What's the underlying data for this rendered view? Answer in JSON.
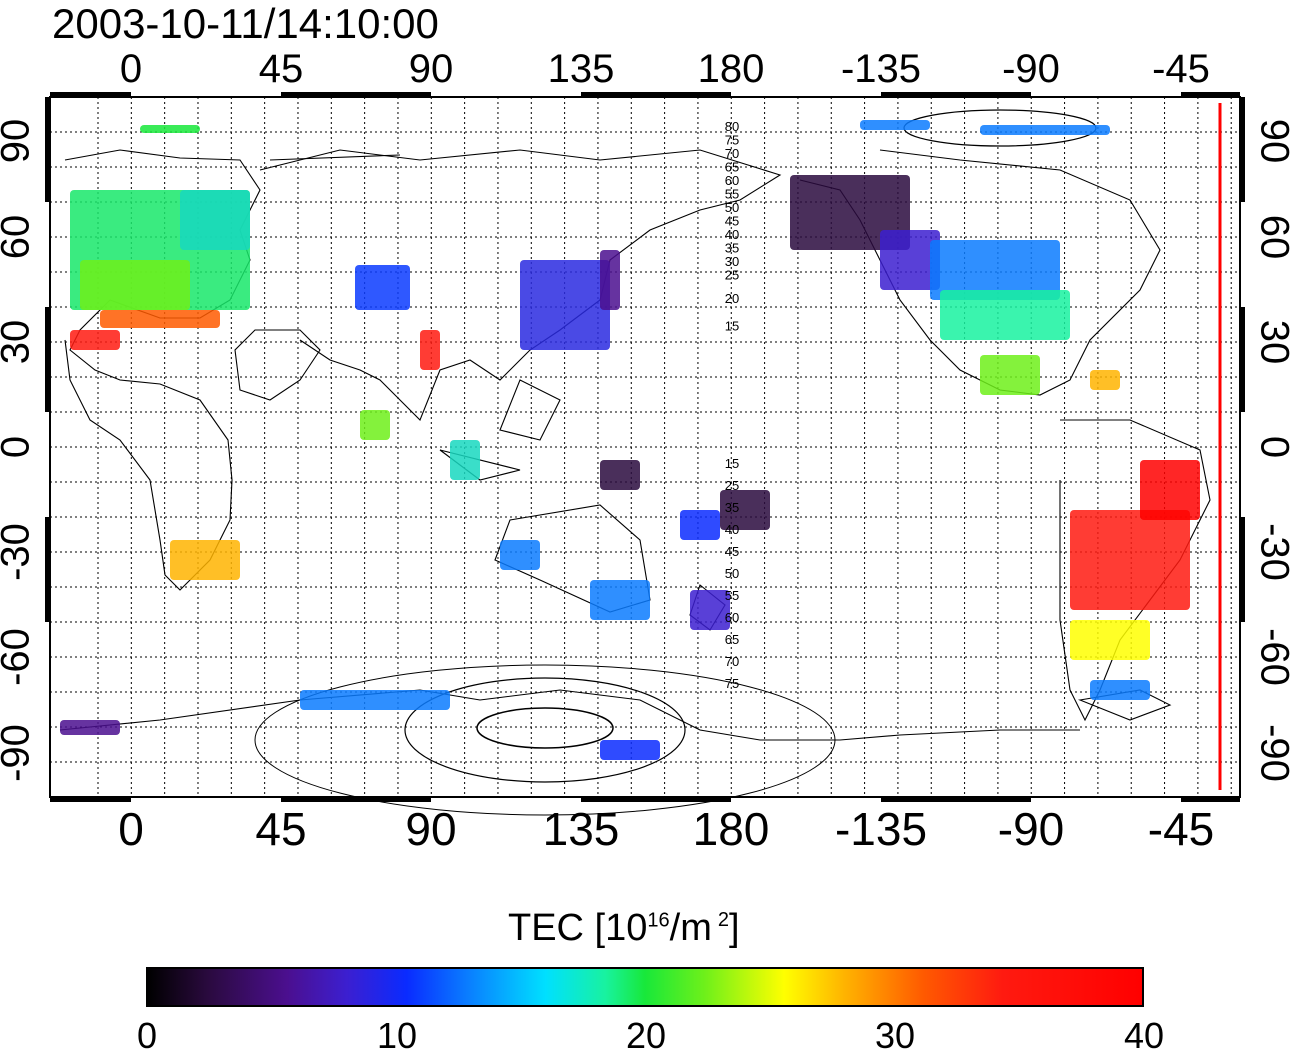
{
  "title": "2003-10-11/14:10:00",
  "map": {
    "lon_ticks_top": [
      "0",
      "45",
      "90",
      "135",
      "180",
      "-135",
      "-90",
      "-45"
    ],
    "lon_ticks_bottom": [
      "0",
      "45",
      "90",
      "135",
      "180",
      "-135",
      "-90",
      "-45"
    ],
    "lat_ticks_left": [
      "90",
      "60",
      "30",
      "0",
      "-30",
      "-60",
      "-90"
    ],
    "lat_ticks_right": [
      "90",
      "60",
      "30",
      "0",
      "-30",
      "-60",
      "-90"
    ],
    "contour_labels_north": [
      "80",
      "75",
      "70",
      "65",
      "60",
      "55",
      "50",
      "45",
      "40",
      "35",
      "30",
      "25",
      "20",
      "15"
    ],
    "contour_labels_south": [
      "15",
      "25",
      "35",
      "40",
      "45",
      "50",
      "55",
      "60",
      "65",
      "70",
      "75"
    ],
    "terminator_color": "#ff0000"
  },
  "colorbar": {
    "label_main": "TEC  [10",
    "label_exp1": "16",
    "label_mid": "/m",
    "label_exp2": "2",
    "label_end": "]",
    "ticks": [
      "0",
      "10",
      "20",
      "30",
      "40"
    ],
    "range": [
      0,
      40
    ]
  }
}
